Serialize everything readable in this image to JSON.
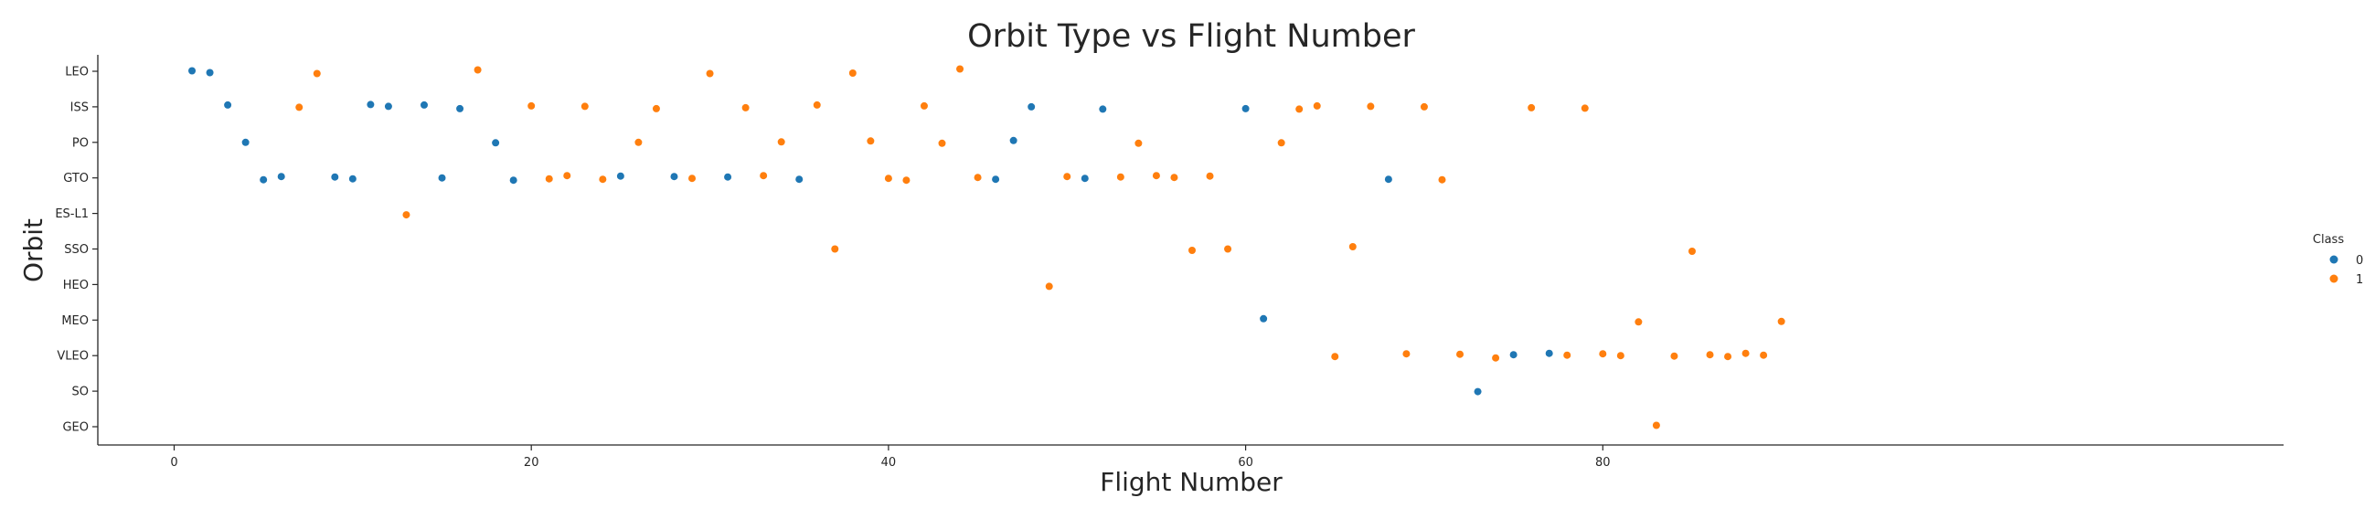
{
  "chart_data": {
    "type": "scatter",
    "title": "Orbit Type vs Flight Number",
    "xlabel": "Flight Number",
    "ylabel": "Orbit",
    "xlim": [
      -4.5,
      94
    ],
    "x_ticks": [
      "0",
      "20",
      "40",
      "60",
      "80"
    ],
    "x_tick_values": [
      0,
      20,
      40,
      60,
      80
    ],
    "categories": [
      "LEO",
      "ISS",
      "PO",
      "GTO",
      "ES-L1",
      "SSO",
      "HEO",
      "MEO",
      "VLEO",
      "SO",
      "GEO"
    ],
    "grid": false,
    "legend": {
      "title": "Class",
      "position": "right"
    },
    "series": [
      {
        "name": "0",
        "color": "#1f77b4",
        "points": [
          {
            "x": 1,
            "y": "LEO"
          },
          {
            "x": 2,
            "y": "LEO"
          },
          {
            "x": 3,
            "y": "ISS"
          },
          {
            "x": 4,
            "y": "PO"
          },
          {
            "x": 5,
            "y": "GTO"
          },
          {
            "x": 6,
            "y": "GTO"
          },
          {
            "x": 9,
            "y": "GTO"
          },
          {
            "x": 10,
            "y": "GTO"
          },
          {
            "x": 11,
            "y": "ISS"
          },
          {
            "x": 12,
            "y": "ISS"
          },
          {
            "x": 14,
            "y": "ISS"
          },
          {
            "x": 15,
            "y": "GTO"
          },
          {
            "x": 16,
            "y": "ISS"
          },
          {
            "x": 18,
            "y": "PO"
          },
          {
            "x": 19,
            "y": "GTO"
          },
          {
            "x": 25,
            "y": "GTO"
          },
          {
            "x": 28,
            "y": "GTO"
          },
          {
            "x": 31,
            "y": "GTO"
          },
          {
            "x": 35,
            "y": "GTO"
          },
          {
            "x": 46,
            "y": "GTO"
          },
          {
            "x": 47,
            "y": "PO"
          },
          {
            "x": 48,
            "y": "ISS"
          },
          {
            "x": 51,
            "y": "GTO"
          },
          {
            "x": 52,
            "y": "ISS"
          },
          {
            "x": 60,
            "y": "ISS"
          },
          {
            "x": 61,
            "y": "MEO"
          },
          {
            "x": 68,
            "y": "GTO"
          },
          {
            "x": 73,
            "y": "SO"
          },
          {
            "x": 75,
            "y": "VLEO"
          },
          {
            "x": 77,
            "y": "VLEO"
          }
        ]
      },
      {
        "name": "1",
        "color": "#ff7f0e",
        "points": [
          {
            "x": 7,
            "y": "ISS"
          },
          {
            "x": 8,
            "y": "LEO"
          },
          {
            "x": 13,
            "y": "ES-L1"
          },
          {
            "x": 17,
            "y": "LEO"
          },
          {
            "x": 20,
            "y": "ISS"
          },
          {
            "x": 21,
            "y": "GTO"
          },
          {
            "x": 22,
            "y": "GTO"
          },
          {
            "x": 23,
            "y": "ISS"
          },
          {
            "x": 24,
            "y": "GTO"
          },
          {
            "x": 26,
            "y": "PO"
          },
          {
            "x": 27,
            "y": "ISS"
          },
          {
            "x": 29,
            "y": "GTO"
          },
          {
            "x": 30,
            "y": "LEO"
          },
          {
            "x": 32,
            "y": "ISS"
          },
          {
            "x": 33,
            "y": "GTO"
          },
          {
            "x": 34,
            "y": "PO"
          },
          {
            "x": 36,
            "y": "ISS"
          },
          {
            "x": 37,
            "y": "SSO"
          },
          {
            "x": 38,
            "y": "LEO"
          },
          {
            "x": 39,
            "y": "PO"
          },
          {
            "x": 40,
            "y": "GTO"
          },
          {
            "x": 41,
            "y": "GTO"
          },
          {
            "x": 42,
            "y": "ISS"
          },
          {
            "x": 43,
            "y": "PO"
          },
          {
            "x": 44,
            "y": "LEO"
          },
          {
            "x": 45,
            "y": "GTO"
          },
          {
            "x": 49,
            "y": "HEO"
          },
          {
            "x": 50,
            "y": "GTO"
          },
          {
            "x": 53,
            "y": "GTO"
          },
          {
            "x": 54,
            "y": "PO"
          },
          {
            "x": 55,
            "y": "GTO"
          },
          {
            "x": 56,
            "y": "GTO"
          },
          {
            "x": 57,
            "y": "SSO"
          },
          {
            "x": 58,
            "y": "GTO"
          },
          {
            "x": 59,
            "y": "SSO"
          },
          {
            "x": 62,
            "y": "PO"
          },
          {
            "x": 63,
            "y": "ISS"
          },
          {
            "x": 64,
            "y": "ISS"
          },
          {
            "x": 65,
            "y": "VLEO"
          },
          {
            "x": 66,
            "y": "SSO"
          },
          {
            "x": 67,
            "y": "ISS"
          },
          {
            "x": 69,
            "y": "VLEO"
          },
          {
            "x": 70,
            "y": "ISS"
          },
          {
            "x": 71,
            "y": "GTO"
          },
          {
            "x": 72,
            "y": "VLEO"
          },
          {
            "x": 74,
            "y": "VLEO"
          },
          {
            "x": 76,
            "y": "ISS"
          },
          {
            "x": 78,
            "y": "VLEO"
          },
          {
            "x": 79,
            "y": "ISS"
          },
          {
            "x": 80,
            "y": "VLEO"
          },
          {
            "x": 81,
            "y": "VLEO"
          },
          {
            "x": 82,
            "y": "MEO"
          },
          {
            "x": 83,
            "y": "GEO"
          },
          {
            "x": 84,
            "y": "VLEO"
          },
          {
            "x": 85,
            "y": "SSO"
          },
          {
            "x": 86,
            "y": "VLEO"
          },
          {
            "x": 87,
            "y": "VLEO"
          },
          {
            "x": 88,
            "y": "VLEO"
          },
          {
            "x": 89,
            "y": "VLEO"
          },
          {
            "x": 90,
            "y": "MEO"
          }
        ]
      }
    ]
  }
}
